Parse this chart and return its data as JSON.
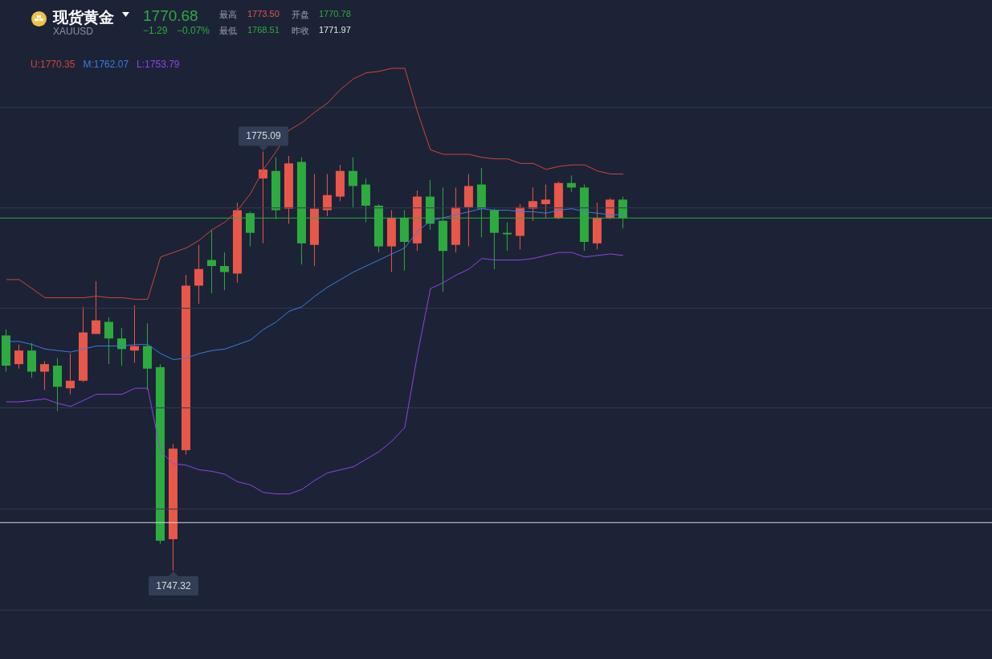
{
  "chart_data": {
    "type": "candlestick",
    "title": "现货黄金",
    "subtitle": "XAUUSD",
    "annotations": [
      "1770.68",
      "−1.29",
      "−0.07%",
      "最高",
      "1773.50",
      "开盘",
      "1770.78",
      "最低",
      "1768.51",
      "昨收",
      "1771.97",
      {
        "text": "1775.09",
        "y": 1775.09
      },
      {
        "text": "1747.32",
        "y": 1747.32
      }
    ],
    "categories": [
      null,
      null,
      null,
      null,
      null,
      null,
      null,
      null,
      null,
      null,
      null,
      null,
      null,
      null,
      null,
      null,
      null,
      null,
      null,
      null,
      null,
      null,
      null,
      null,
      null,
      null,
      null,
      null,
      null,
      null,
      null,
      null,
      null,
      null,
      null,
      null,
      null,
      null,
      null,
      null,
      null,
      null,
      null,
      null,
      null,
      null,
      null,
      null,
      null
    ],
    "ohlc": [
      [
        1762.9,
        1763.3,
        1760.5,
        1760.9
      ],
      [
        1761.0,
        1762.3,
        1760.7,
        1761.9
      ],
      [
        1761.9,
        1762.4,
        1760.1,
        1760.5
      ],
      [
        1760.5,
        1761.2,
        1759.3,
        1761.0
      ],
      [
        1760.9,
        1761.4,
        1757.9,
        1759.5
      ],
      [
        1759.4,
        1761.7,
        1759.0,
        1759.9
      ],
      [
        1759.9,
        1764.8,
        1759.8,
        1763.1
      ],
      [
        1763.0,
        1766.5,
        1763.0,
        1763.9
      ],
      [
        1763.8,
        1764.1,
        1761.0,
        1762.7
      ],
      [
        1762.7,
        1763.4,
        1760.9,
        1762.0
      ],
      [
        1761.9,
        1764.9,
        1761.1,
        1762.2
      ],
      [
        1762.2,
        1763.7,
        1759.3,
        1760.7
      ],
      [
        1760.8,
        1761.0,
        1749.1,
        1749.3
      ],
      [
        1749.4,
        1755.7,
        1747.32,
        1755.4
      ],
      [
        1755.3,
        1766.9,
        1755.0,
        1766.2
      ],
      [
        1766.2,
        1768.9,
        1765.0,
        1767.3
      ],
      [
        1767.9,
        1769.9,
        1765.7,
        1767.5
      ],
      [
        1767.5,
        1768.4,
        1765.9,
        1767.1
      ],
      [
        1767.0,
        1771.7,
        1766.4,
        1771.2
      ],
      [
        1771.0,
        1771.1,
        1768.8,
        1769.7
      ],
      [
        1773.3,
        1775.09,
        1769.0,
        1773.9
      ],
      [
        1773.8,
        1774.7,
        1770.6,
        1771.2
      ],
      [
        1771.3,
        1774.8,
        1770.3,
        1774.3
      ],
      [
        1774.4,
        1774.7,
        1767.6,
        1769.0
      ],
      [
        1768.9,
        1773.6,
        1767.5,
        1771.3
      ],
      [
        1771.2,
        1773.6,
        1770.8,
        1772.2
      ],
      [
        1772.1,
        1774.2,
        1771.8,
        1773.8
      ],
      [
        1773.8,
        1774.7,
        1771.4,
        1772.8
      ],
      [
        1772.9,
        1773.3,
        1770.4,
        1771.5
      ],
      [
        1771.5,
        1771.6,
        1768.4,
        1768.8
      ],
      [
        1768.8,
        1771.2,
        1767.1,
        1770.7
      ],
      [
        1770.7,
        1771.2,
        1767.2,
        1769.1
      ],
      [
        1769.0,
        1772.5,
        1768.5,
        1772.1
      ],
      [
        1772.1,
        1773.2,
        1769.9,
        1770.3
      ],
      [
        1770.5,
        1772.7,
        1765.8,
        1768.5
      ],
      [
        1768.9,
        1772.7,
        1768.4,
        1771.4
      ],
      [
        1771.4,
        1773.6,
        1768.8,
        1772.8
      ],
      [
        1772.9,
        1774.0,
        1769.4,
        1771.3
      ],
      [
        1771.2,
        1771.3,
        1767.3,
        1769.7
      ],
      [
        1769.7,
        1770.4,
        1768.5,
        1769.6
      ],
      [
        1769.5,
        1771.6,
        1768.6,
        1771.4
      ],
      [
        1771.3,
        1772.7,
        1770.5,
        1771.8
      ],
      [
        1771.6,
        1772.9,
        1770.7,
        1771.9
      ],
      [
        1770.7,
        1773.1,
        1770.6,
        1773.0
      ],
      [
        1773.0,
        1773.5,
        1772.4,
        1772.7
      ],
      [
        1772.7,
        1772.9,
        1768.5,
        1769.1
      ],
      [
        1769.0,
        1771.7,
        1768.6,
        1770.7
      ],
      [
        1770.7,
        1772.0,
        1770.6,
        1771.9
      ],
      [
        1771.9,
        1772.1,
        1770.0,
        1770.68
      ]
    ],
    "colors": [
      "#2eab3f",
      "#e8574a",
      "#2eab3f",
      "#e8574a",
      "#2eab3f",
      "#e8574a",
      "#e8574a",
      "#e8574a",
      "#2eab3f",
      "#2eab3f",
      "#e8574a",
      "#2eab3f",
      "#2eab3f",
      "#e8574a",
      "#e8574a",
      "#e8574a",
      "#2eab3f",
      "#2eab3f",
      "#e8574a",
      "#2eab3f",
      "#e8574a",
      "#2eab3f",
      "#e8574a",
      "#2eab3f",
      "#e8574a",
      "#e8574a",
      "#e8574a",
      "#2eab3f",
      "#2eab3f",
      "#2eab3f",
      "#e8574a",
      "#2eab3f",
      "#e8574a",
      "#2eab3f",
      "#2eab3f",
      "#e8574a",
      "#e8574a",
      "#2eab3f",
      "#2eab3f",
      "#2eab3f",
      "#e8574a",
      "#e8574a",
      "#e8574a",
      "#e8574a",
      "#2eab3f",
      "#2eab3f",
      "#e8574a",
      "#e8574a",
      "#2eab3f"
    ],
    "series": [
      {
        "name": "U:1770.35",
        "type": "line",
        "color": "#d0453a",
        "values": [
          1766.6,
          1766.6,
          1766.0,
          1765.4,
          1765.4,
          1765.4,
          1765.4,
          1765.5,
          1765.4,
          1765.4,
          1765.3,
          1765.3,
          1768.1,
          1768.4,
          1768.7,
          1769.2,
          1769.9,
          1770.4,
          1771.2,
          1772.3,
          1773.9,
          1775.1,
          1776.5,
          1777.0,
          1777.7,
          1778.3,
          1779.2,
          1779.9,
          1780.3,
          1780.4,
          1780.6,
          1780.6,
          1777.7,
          1775.2,
          1774.9,
          1774.9,
          1774.9,
          1774.7,
          1774.6,
          1774.6,
          1774.3,
          1774.3,
          1773.9,
          1774.1,
          1774.2,
          1774.2,
          1773.8,
          1773.6,
          1773.6
        ]
      },
      {
        "name": "M:1762.07",
        "type": "line",
        "color": "#3b7be0",
        "values": [
          1762.5,
          1762.5,
          1762.3,
          1762.0,
          1761.9,
          1761.8,
          1762.0,
          1762.2,
          1762.2,
          1762.2,
          1762.3,
          1762.3,
          1761.7,
          1761.3,
          1761.4,
          1761.7,
          1761.9,
          1762.0,
          1762.3,
          1762.6,
          1763.3,
          1763.8,
          1764.5,
          1764.8,
          1765.5,
          1766.1,
          1766.6,
          1767.1,
          1767.5,
          1767.9,
          1768.3,
          1768.7,
          1769.8,
          1770.5,
          1770.7,
          1770.9,
          1771.1,
          1771.3,
          1771.2,
          1771.2,
          1771.1,
          1771.1,
          1771.0,
          1771.2,
          1771.3,
          1771.1,
          1771.0,
          1770.9,
          1770.9
        ]
      },
      {
        "name": "L:1753.79",
        "type": "line",
        "color": "#8e44e8",
        "values": [
          1758.5,
          1758.5,
          1758.6,
          1758.7,
          1758.4,
          1758.2,
          1758.6,
          1759.0,
          1759.0,
          1759.0,
          1759.4,
          1759.4,
          1755.2,
          1754.4,
          1754.3,
          1754.0,
          1753.9,
          1753.7,
          1753.2,
          1753.0,
          1752.5,
          1752.4,
          1752.4,
          1752.7,
          1753.3,
          1753.8,
          1754.0,
          1754.2,
          1754.7,
          1755.2,
          1755.9,
          1756.8,
          1761.7,
          1766.0,
          1766.4,
          1766.9,
          1767.3,
          1768.0,
          1767.9,
          1767.9,
          1767.9,
          1768.0,
          1768.2,
          1768.4,
          1768.4,
          1768.1,
          1768.2,
          1768.3,
          1768.2
        ]
      }
    ],
    "yticks": [
      {
        "value": 1778.0,
        "label": null
      },
      {
        "value": 1771.35,
        "label": null
      },
      {
        "value": 1764.7,
        "label": null
      },
      {
        "value": 1758.1,
        "label": null
      },
      {
        "value": 1751.4,
        "label": null
      },
      {
        "value": 1744.7,
        "label": null
      }
    ],
    "ref_lines": [
      {
        "axis": "y",
        "value": 1770.68,
        "color": "#2eab3f"
      },
      {
        "axis": "y",
        "value": 1750.5,
        "color": "#d8dbe2"
      }
    ],
    "grid": "y",
    "legend": "top left",
    "tick_labels": false
  }
}
